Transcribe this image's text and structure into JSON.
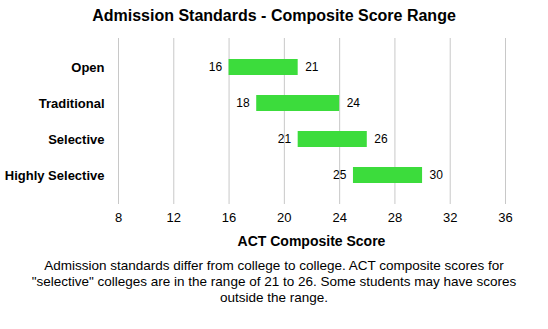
{
  "chart_data": {
    "type": "bar",
    "orientation": "horizontal",
    "title": "Admission Standards - Composite Score Range",
    "xlabel": "ACT Composite Score",
    "caption": "Admission standards differ from college to college. ACT composite scores for \"selective\" colleges are in the range of 21 to 26. Some students may have scores outside the range.",
    "categories": [
      "Open",
      "Traditional",
      "Selective",
      "Highly Selective"
    ],
    "values": [
      [
        16,
        21
      ],
      [
        18,
        24
      ],
      [
        21,
        26
      ],
      [
        25,
        30
      ]
    ],
    "color": "#3cdc3c",
    "xlim": [
      8,
      36
    ],
    "xticks": [
      8,
      12,
      16,
      20,
      24,
      28,
      32,
      36
    ],
    "grid": true,
    "data_labels": true
  }
}
